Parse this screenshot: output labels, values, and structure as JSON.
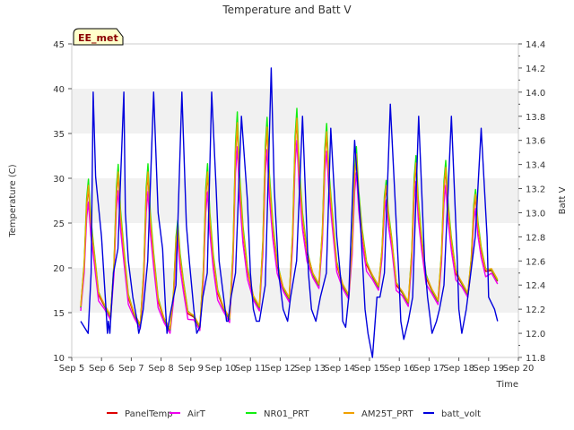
{
  "chart_data": {
    "type": "line",
    "title": "Temperature and Batt V",
    "xlabel": "Time",
    "ylabel": "Temperature (C)",
    "y2label": "Batt V",
    "site_label": "EE_met",
    "x_ticks": [
      "Sep 5",
      "Sep 6",
      "Sep 7",
      "Sep 8",
      "Sep 9",
      "Sep 10",
      "Sep 11",
      "Sep 12",
      "Sep 13",
      "Sep 14",
      "Sep 15",
      "Sep 16",
      "Sep 17",
      "Sep 18",
      "Sep 19",
      "Sep 20"
    ],
    "xlim": [
      5,
      20
    ],
    "ylim": [
      10,
      45
    ],
    "y_ticks": [
      10,
      15,
      20,
      25,
      30,
      35,
      40,
      45
    ],
    "y2lim": [
      11.8,
      14.4
    ],
    "y2_ticks": [
      "11.8",
      "12.0",
      "12.2",
      "12.4",
      "12.6",
      "12.8",
      "13.0",
      "13.2",
      "13.4",
      "13.6",
      "13.8",
      "14.0",
      "14.2",
      "14.4"
    ],
    "bands": [
      [
        15,
        20
      ],
      [
        25,
        30
      ],
      [
        35,
        40
      ]
    ],
    "legend_position": "bottom",
    "temperature_days": [
      {
        "day": 5.3,
        "min": 15.5,
        "max": 29.0
      },
      {
        "day": 6.3,
        "min": 14.5,
        "max": 30.5
      },
      {
        "day": 7.3,
        "min": 13.5,
        "max": 30.5
      },
      {
        "day": 8.3,
        "min": 13.0,
        "max": 24.5
      },
      {
        "day": 9.3,
        "min": 13.3,
        "max": 30.5
      },
      {
        "day": 10.3,
        "min": 14.2,
        "max": 36.0
      },
      {
        "day": 11.3,
        "min": 15.5,
        "max": 35.5
      },
      {
        "day": 12.3,
        "min": 16.5,
        "max": 36.5
      },
      {
        "day": 13.3,
        "min": 18.0,
        "max": 35.0
      },
      {
        "day": 14.3,
        "min": 16.8,
        "max": 32.5
      },
      {
        "day": 15.3,
        "min": 17.8,
        "max": 29.0
      },
      {
        "day": 16.3,
        "min": 16.0,
        "max": 31.5
      },
      {
        "day": 17.3,
        "min": 16.2,
        "max": 31.0
      },
      {
        "day": 18.3,
        "min": 17.0,
        "max": 28.0
      },
      {
        "day": 19.3,
        "min": 18.5,
        "max": 18.5
      }
    ],
    "series": [
      {
        "name": "PanelTemp",
        "color": "#dd0000",
        "offset": 0.0,
        "max_scale": 1.0
      },
      {
        "name": "AirT",
        "color": "#ee00ee",
        "offset": -0.3,
        "max_scale": 0.9
      },
      {
        "name": "NR01_PRT",
        "color": "#11ee11",
        "offset": 0.1,
        "max_scale": 1.06
      },
      {
        "name": "AM25T_PRT",
        "color": "#f0a000",
        "offset": 0.2,
        "max_scale": 1.0
      },
      {
        "name": "batt_volt",
        "color": "#0000dd",
        "axis": "right",
        "x": [
          5.3,
          5.55,
          5.65,
          5.72,
          5.8,
          6.0,
          6.15,
          6.2,
          6.23,
          6.28,
          6.4,
          6.55,
          6.75,
          6.8,
          6.9,
          7.05,
          7.2,
          7.25,
          7.3,
          7.4,
          7.55,
          7.75,
          7.9,
          8.05,
          8.15,
          8.2,
          8.3,
          8.5,
          8.7,
          8.85,
          8.95,
          9.1,
          9.2,
          9.3,
          9.4,
          9.55,
          9.7,
          9.85,
          9.95,
          10.1,
          10.2,
          10.25,
          10.35,
          10.5,
          10.7,
          10.9,
          11.0,
          11.1,
          11.2,
          11.3,
          11.5,
          11.7,
          11.8,
          11.95,
          12.1,
          12.25,
          12.35,
          12.55,
          12.75,
          12.95,
          13.05,
          13.2,
          13.35,
          13.55,
          13.7,
          13.9,
          14.05,
          14.1,
          14.2,
          14.3,
          14.5,
          14.7,
          14.85,
          14.95,
          15.1,
          15.25,
          15.35,
          15.5,
          15.7,
          15.9,
          16.0,
          16.05,
          16.15,
          16.3,
          16.45,
          16.65,
          16.85,
          16.95,
          17.1,
          17.25,
          17.35,
          17.5,
          17.75,
          17.95,
          18.0,
          18.1,
          18.25,
          18.4,
          18.55,
          18.75,
          18.95,
          19.0,
          19.2,
          19.3
        ],
        "y": [
          12.1,
          12.0,
          12.5,
          14.0,
          13.3,
          12.8,
          12.2,
          12.0,
          12.1,
          12.0,
          12.5,
          12.7,
          14.0,
          13.0,
          12.6,
          12.3,
          12.1,
          12.0,
          12.05,
          12.2,
          12.6,
          14.0,
          13.0,
          12.7,
          12.2,
          12.0,
          12.15,
          12.4,
          14.0,
          12.9,
          12.6,
          12.2,
          12.0,
          12.05,
          12.3,
          12.5,
          14.0,
          13.2,
          12.6,
          12.3,
          12.1,
          12.1,
          12.3,
          12.5,
          13.8,
          13.1,
          12.5,
          12.2,
          12.1,
          12.1,
          12.4,
          14.2,
          13.2,
          12.5,
          12.2,
          12.1,
          12.3,
          12.6,
          13.8,
          12.5,
          12.2,
          12.1,
          12.3,
          12.5,
          13.7,
          12.8,
          12.4,
          12.1,
          12.05,
          12.3,
          13.6,
          12.9,
          12.2,
          12.0,
          11.8,
          12.3,
          12.3,
          12.5,
          13.9,
          12.9,
          12.4,
          12.1,
          11.95,
          12.1,
          12.3,
          13.8,
          12.6,
          12.3,
          12.0,
          12.1,
          12.2,
          12.4,
          13.8,
          12.6,
          12.2,
          12.0,
          12.2,
          12.5,
          12.8,
          13.7,
          12.8,
          12.3,
          12.2,
          12.1
        ]
      }
    ]
  }
}
